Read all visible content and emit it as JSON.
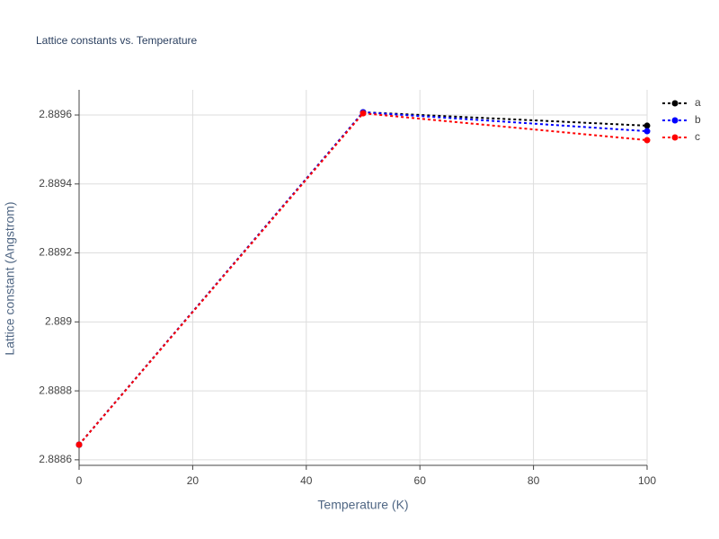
{
  "chart_data": {
    "type": "line",
    "title": "Lattice constants vs. Temperature",
    "x_label": "Temperature (K)",
    "y_label": "Lattice constant (Angstrom)",
    "x": [
      0,
      50,
      100
    ],
    "series": [
      {
        "name": "a",
        "color": "#000000",
        "values": [
          2.888644,
          2.889608,
          2.889569
        ]
      },
      {
        "name": "b",
        "color": "#0000ff",
        "values": [
          2.888644,
          2.889608,
          2.889553
        ]
      },
      {
        "name": "c",
        "color": "#ff0000",
        "values": [
          2.888644,
          2.889605,
          2.889527
        ]
      }
    ],
    "xlim": [
      0,
      100
    ],
    "xticks": [
      0,
      20,
      40,
      60,
      80,
      100
    ],
    "ylim": [
      2.888584,
      2.889673
    ],
    "yticks": [
      2.8886,
      2.8888,
      2.889,
      2.8892,
      2.8894,
      2.8896
    ],
    "grid": true,
    "legend": "top-right"
  }
}
